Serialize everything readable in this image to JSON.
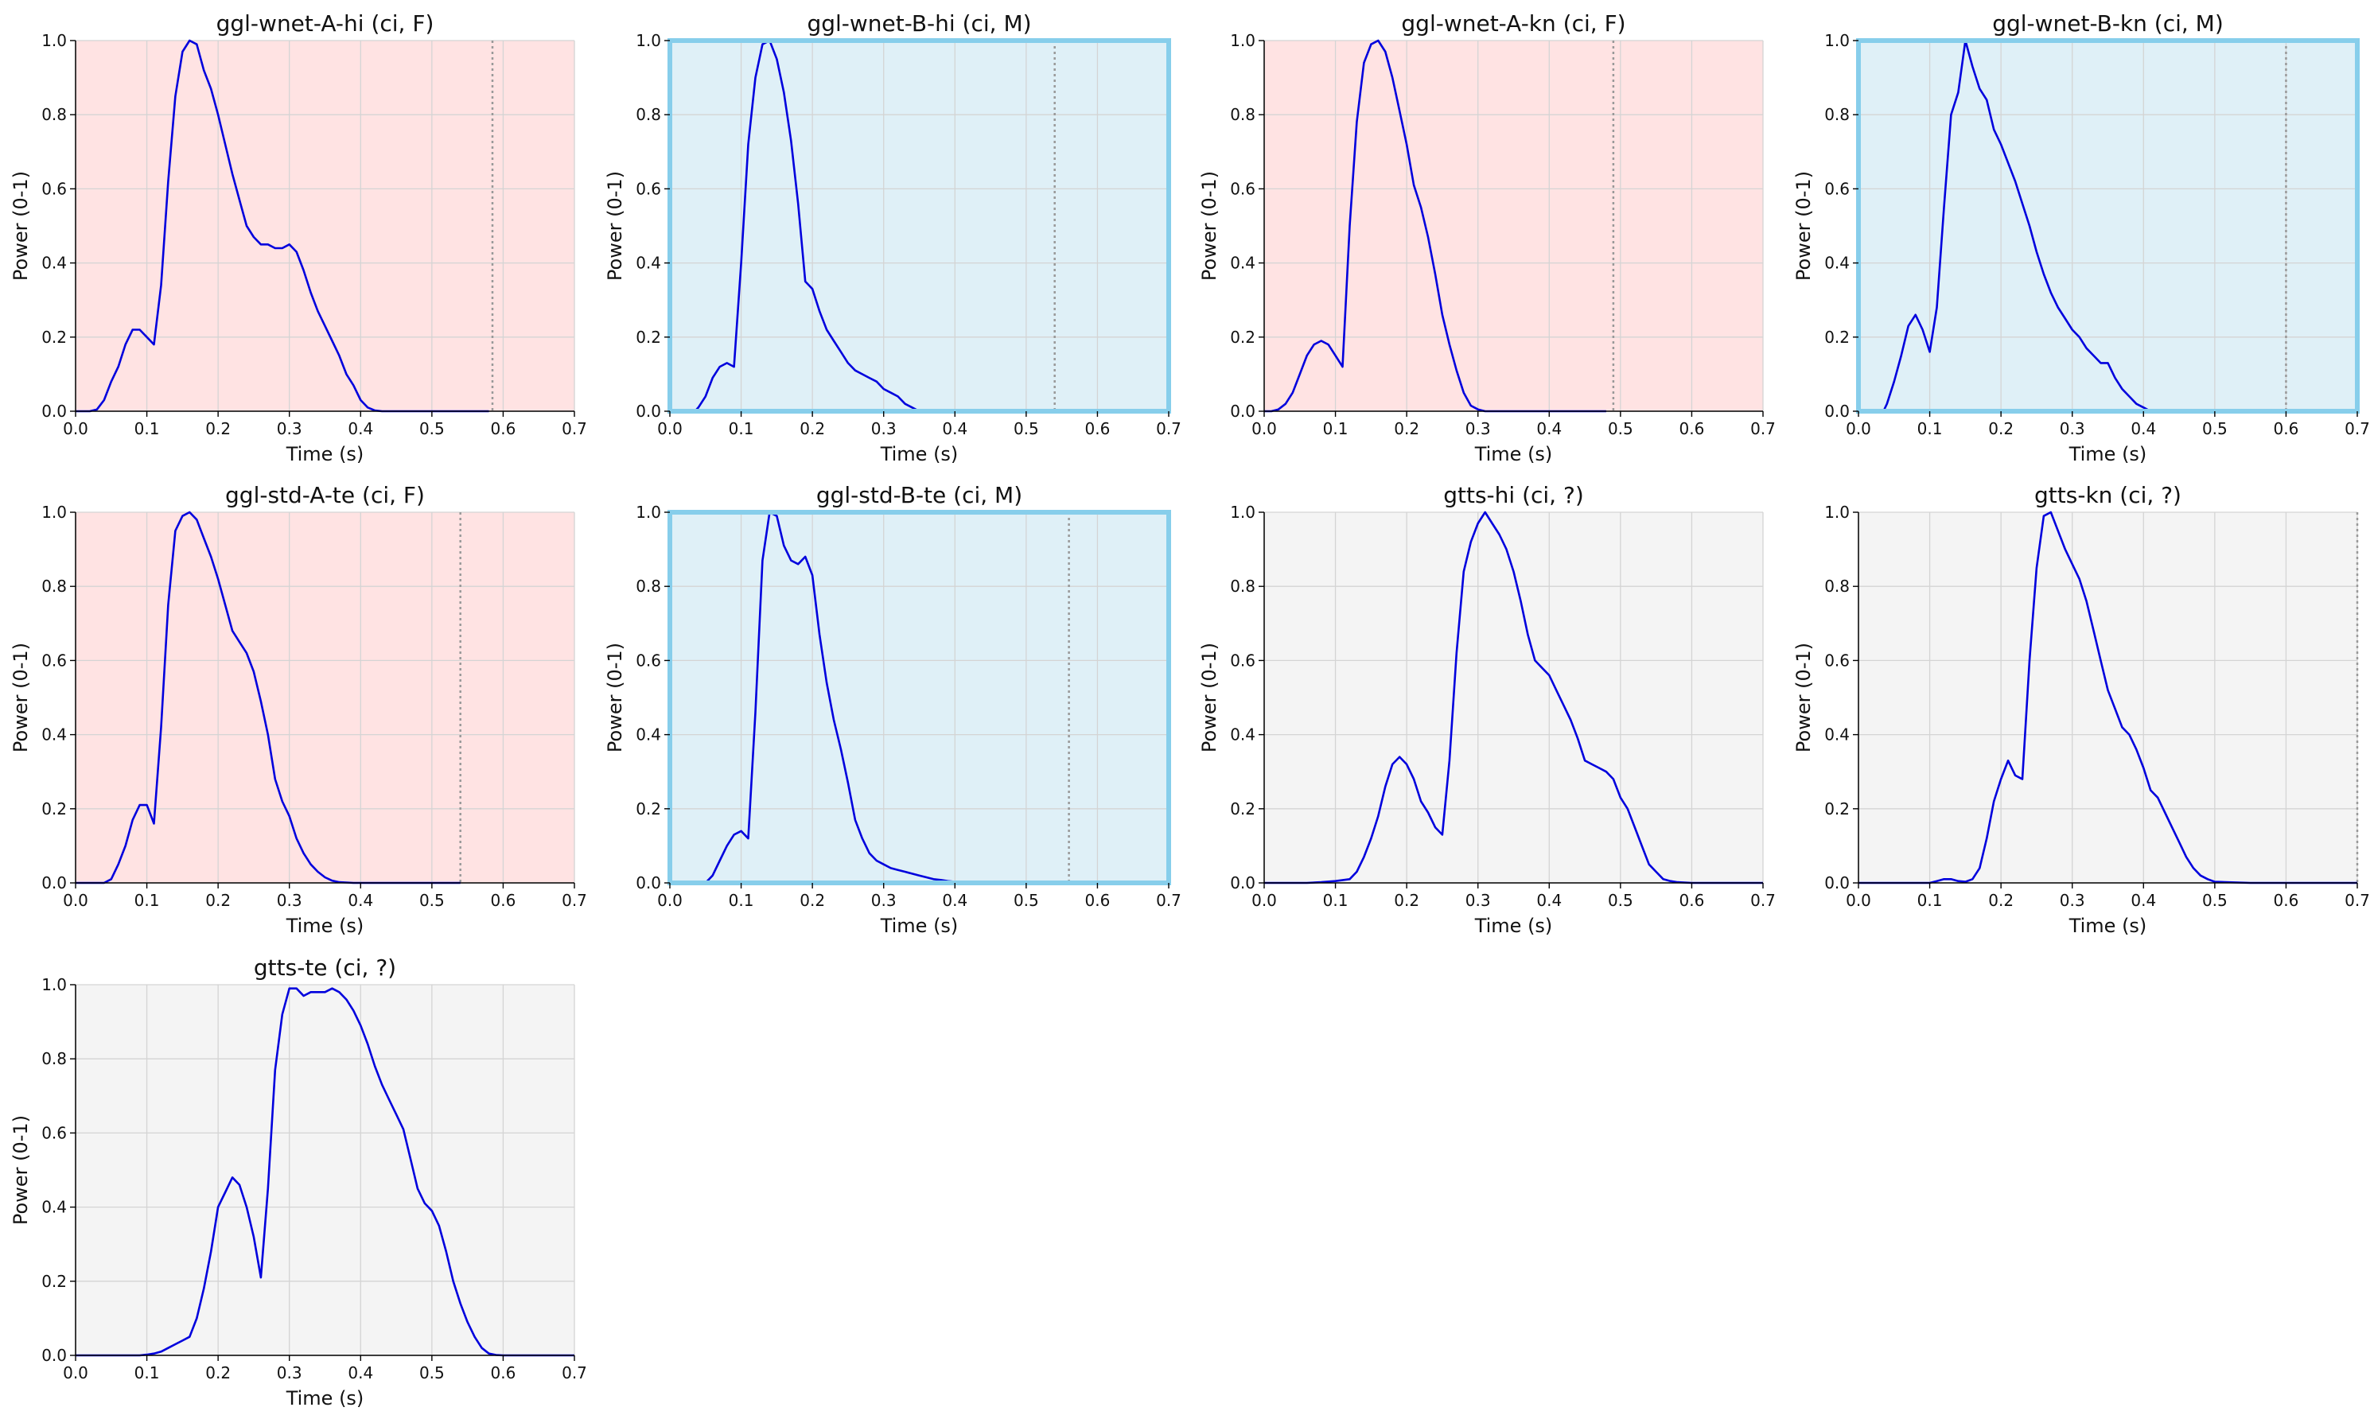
{
  "colors": {
    "female_bg": "#ffe3e3",
    "male_bg": "#dff0f7",
    "unknown_bg": "#f4f4f4",
    "male_frame": "#87ceeb",
    "line": "#0000dd",
    "marker": "#999999"
  },
  "chart_data": [
    {
      "type": "line",
      "title": "ggl-wnet-A-hi (ci, F)",
      "xlabel": "Time (s)",
      "ylabel": "Power (0-1)",
      "xlim": [
        0,
        0.7
      ],
      "ylim": [
        0,
        1
      ],
      "xticks": [
        "0.0",
        "0.1",
        "0.2",
        "0.3",
        "0.4",
        "0.5",
        "0.6",
        "0.7"
      ],
      "yticks": [
        "0.0",
        "0.2",
        "0.4",
        "0.6",
        "0.8",
        "1.0"
      ],
      "grid": true,
      "group": "F",
      "end_marker": 0.585,
      "x": [
        0,
        0.02,
        0.03,
        0.04,
        0.05,
        0.06,
        0.07,
        0.08,
        0.09,
        0.1,
        0.11,
        0.12,
        0.13,
        0.14,
        0.15,
        0.16,
        0.17,
        0.18,
        0.19,
        0.2,
        0.21,
        0.22,
        0.23,
        0.24,
        0.25,
        0.26,
        0.27,
        0.28,
        0.29,
        0.3,
        0.31,
        0.32,
        0.33,
        0.34,
        0.35,
        0.36,
        0.37,
        0.38,
        0.39,
        0.4,
        0.41,
        0.42,
        0.43,
        0.45,
        0.5,
        0.58
      ],
      "y": [
        0,
        0,
        0.005,
        0.03,
        0.08,
        0.12,
        0.18,
        0.22,
        0.22,
        0.2,
        0.18,
        0.34,
        0.62,
        0.85,
        0.97,
        1.0,
        0.99,
        0.92,
        0.87,
        0.8,
        0.72,
        0.64,
        0.57,
        0.5,
        0.47,
        0.45,
        0.45,
        0.44,
        0.44,
        0.45,
        0.43,
        0.38,
        0.32,
        0.27,
        0.23,
        0.19,
        0.15,
        0.1,
        0.07,
        0.03,
        0.01,
        0.002,
        0,
        0,
        0,
        0
      ]
    },
    {
      "type": "line",
      "title": "ggl-wnet-B-hi (ci, M)",
      "xlabel": "Time (s)",
      "ylabel": "Power (0-1)",
      "xlim": [
        0,
        0.7
      ],
      "ylim": [
        0,
        1
      ],
      "xticks": [
        "0.0",
        "0.1",
        "0.2",
        "0.3",
        "0.4",
        "0.5",
        "0.6",
        "0.7"
      ],
      "yticks": [
        "0.0",
        "0.2",
        "0.4",
        "0.6",
        "0.8",
        "1.0"
      ],
      "grid": true,
      "group": "M",
      "end_marker": 0.54,
      "x": [
        0.035,
        0.04,
        0.05,
        0.06,
        0.07,
        0.08,
        0.09,
        0.1,
        0.11,
        0.12,
        0.13,
        0.14,
        0.15,
        0.16,
        0.17,
        0.18,
        0.19,
        0.2,
        0.21,
        0.22,
        0.23,
        0.24,
        0.25,
        0.26,
        0.27,
        0.28,
        0.29,
        0.3,
        0.31,
        0.32,
        0.33,
        0.34,
        0.35,
        0.36,
        0.37,
        0.38
      ],
      "y": [
        0,
        0.01,
        0.04,
        0.09,
        0.12,
        0.13,
        0.12,
        0.4,
        0.72,
        0.9,
        0.99,
        1.0,
        0.95,
        0.86,
        0.73,
        0.56,
        0.35,
        0.33,
        0.27,
        0.22,
        0.19,
        0.16,
        0.13,
        0.11,
        0.1,
        0.09,
        0.08,
        0.06,
        0.05,
        0.04,
        0.02,
        0.01,
        0,
        0,
        0,
        0
      ]
    },
    {
      "type": "line",
      "title": "ggl-wnet-A-kn (ci, F)",
      "xlabel": "Time (s)",
      "ylabel": "Power (0-1)",
      "xlim": [
        0,
        0.7
      ],
      "ylim": [
        0,
        1
      ],
      "xticks": [
        "0.0",
        "0.1",
        "0.2",
        "0.3",
        "0.4",
        "0.5",
        "0.6",
        "0.7"
      ],
      "yticks": [
        "0.0",
        "0.2",
        "0.4",
        "0.6",
        "0.8",
        "1.0"
      ],
      "grid": true,
      "group": "F",
      "end_marker": 0.49,
      "x": [
        0,
        0.01,
        0.02,
        0.03,
        0.04,
        0.05,
        0.06,
        0.07,
        0.08,
        0.09,
        0.1,
        0.11,
        0.12,
        0.13,
        0.14,
        0.15,
        0.16,
        0.17,
        0.18,
        0.19,
        0.2,
        0.21,
        0.22,
        0.23,
        0.24,
        0.25,
        0.26,
        0.27,
        0.28,
        0.29,
        0.3,
        0.31,
        0.32,
        0.35,
        0.4,
        0.48
      ],
      "y": [
        0,
        0,
        0.005,
        0.02,
        0.05,
        0.1,
        0.15,
        0.18,
        0.19,
        0.18,
        0.15,
        0.12,
        0.5,
        0.78,
        0.94,
        0.99,
        1.0,
        0.97,
        0.9,
        0.81,
        0.72,
        0.61,
        0.55,
        0.47,
        0.37,
        0.26,
        0.18,
        0.11,
        0.05,
        0.015,
        0.005,
        0,
        0,
        0,
        0,
        0
      ]
    },
    {
      "type": "line",
      "title": "ggl-wnet-B-kn (ci, M)",
      "xlabel": "Time (s)",
      "ylabel": "Power (0-1)",
      "xlim": [
        0,
        0.7
      ],
      "ylim": [
        0,
        1
      ],
      "xticks": [
        "0.0",
        "0.1",
        "0.2",
        "0.3",
        "0.4",
        "0.5",
        "0.6",
        "0.7"
      ],
      "yticks": [
        "0.0",
        "0.2",
        "0.4",
        "0.6",
        "0.8",
        "1.0"
      ],
      "grid": true,
      "group": "M",
      "end_marker": 0.6,
      "x": [
        0.035,
        0.04,
        0.05,
        0.06,
        0.07,
        0.08,
        0.09,
        0.1,
        0.11,
        0.12,
        0.13,
        0.14,
        0.15,
        0.16,
        0.17,
        0.18,
        0.19,
        0.2,
        0.21,
        0.22,
        0.23,
        0.24,
        0.25,
        0.26,
        0.27,
        0.28,
        0.29,
        0.3,
        0.31,
        0.32,
        0.33,
        0.34,
        0.35,
        0.36,
        0.37,
        0.38,
        0.39,
        0.4,
        0.41
      ],
      "y": [
        0,
        0.02,
        0.08,
        0.15,
        0.23,
        0.26,
        0.22,
        0.16,
        0.28,
        0.55,
        0.8,
        0.86,
        1.0,
        0.93,
        0.87,
        0.84,
        0.76,
        0.72,
        0.67,
        0.62,
        0.56,
        0.5,
        0.43,
        0.37,
        0.32,
        0.28,
        0.25,
        0.22,
        0.2,
        0.17,
        0.15,
        0.13,
        0.13,
        0.09,
        0.06,
        0.04,
        0.02,
        0.01,
        0
      ]
    },
    {
      "type": "line",
      "title": "ggl-std-A-te (ci, F)",
      "xlabel": "Time (s)",
      "ylabel": "Power (0-1)",
      "xlim": [
        0,
        0.7
      ],
      "ylim": [
        0,
        1
      ],
      "xticks": [
        "0.0",
        "0.1",
        "0.2",
        "0.3",
        "0.4",
        "0.5",
        "0.6",
        "0.7"
      ],
      "yticks": [
        "0.0",
        "0.2",
        "0.4",
        "0.6",
        "0.8",
        "1.0"
      ],
      "grid": true,
      "group": "F",
      "end_marker": 0.54,
      "x": [
        0,
        0.04,
        0.05,
        0.06,
        0.07,
        0.08,
        0.09,
        0.1,
        0.11,
        0.12,
        0.13,
        0.14,
        0.15,
        0.16,
        0.17,
        0.18,
        0.19,
        0.2,
        0.21,
        0.22,
        0.23,
        0.24,
        0.25,
        0.26,
        0.27,
        0.28,
        0.29,
        0.3,
        0.31,
        0.32,
        0.33,
        0.34,
        0.35,
        0.36,
        0.37,
        0.38,
        0.39,
        0.4,
        0.41,
        0.45,
        0.5,
        0.54
      ],
      "y": [
        0,
        0,
        0.01,
        0.05,
        0.1,
        0.17,
        0.21,
        0.21,
        0.16,
        0.42,
        0.75,
        0.95,
        0.99,
        1.0,
        0.98,
        0.93,
        0.88,
        0.82,
        0.75,
        0.68,
        0.65,
        0.62,
        0.57,
        0.49,
        0.4,
        0.28,
        0.22,
        0.18,
        0.12,
        0.08,
        0.05,
        0.03,
        0.015,
        0.006,
        0.002,
        0.001,
        0,
        0,
        0,
        0,
        0,
        0
      ]
    },
    {
      "type": "line",
      "title": "ggl-std-B-te (ci, M)",
      "xlabel": "Time (s)",
      "ylabel": "Power (0-1)",
      "xlim": [
        0,
        0.7
      ],
      "ylim": [
        0,
        1
      ],
      "xticks": [
        "0.0",
        "0.1",
        "0.2",
        "0.3",
        "0.4",
        "0.5",
        "0.6",
        "0.7"
      ],
      "yticks": [
        "0.0",
        "0.2",
        "0.4",
        "0.6",
        "0.8",
        "1.0"
      ],
      "grid": true,
      "group": "M",
      "end_marker": 0.56,
      "x": [
        0.05,
        0.06,
        0.07,
        0.08,
        0.09,
        0.1,
        0.11,
        0.12,
        0.13,
        0.14,
        0.15,
        0.16,
        0.17,
        0.18,
        0.19,
        0.2,
        0.21,
        0.22,
        0.23,
        0.24,
        0.25,
        0.26,
        0.27,
        0.28,
        0.29,
        0.3,
        0.31,
        0.32,
        0.33,
        0.34,
        0.35,
        0.36,
        0.37,
        0.38,
        0.39,
        0.4,
        0.41,
        0.42,
        0.45,
        0.5,
        0.55
      ],
      "y": [
        0,
        0.02,
        0.06,
        0.1,
        0.13,
        0.14,
        0.12,
        0.46,
        0.87,
        1.0,
        0.99,
        0.91,
        0.87,
        0.86,
        0.88,
        0.83,
        0.67,
        0.54,
        0.44,
        0.36,
        0.27,
        0.17,
        0.12,
        0.08,
        0.06,
        0.05,
        0.04,
        0.035,
        0.03,
        0.025,
        0.02,
        0.015,
        0.01,
        0.008,
        0.005,
        0.003,
        0.002,
        0.001,
        0,
        0,
        0
      ]
    },
    {
      "type": "line",
      "title": "gtts-hi (ci, ?)",
      "xlabel": "Time (s)",
      "ylabel": "Power (0-1)",
      "xlim": [
        0,
        0.7
      ],
      "ylim": [
        0,
        1
      ],
      "xticks": [
        "0.0",
        "0.1",
        "0.2",
        "0.3",
        "0.4",
        "0.5",
        "0.6",
        "0.7"
      ],
      "yticks": [
        "0.0",
        "0.2",
        "0.4",
        "0.6",
        "0.8",
        "1.0"
      ],
      "grid": true,
      "group": "?",
      "end_marker": null,
      "x": [
        0,
        0.06,
        0.08,
        0.1,
        0.12,
        0.13,
        0.14,
        0.15,
        0.16,
        0.17,
        0.18,
        0.19,
        0.2,
        0.21,
        0.22,
        0.23,
        0.24,
        0.25,
        0.26,
        0.27,
        0.28,
        0.29,
        0.3,
        0.31,
        0.32,
        0.33,
        0.34,
        0.35,
        0.36,
        0.37,
        0.38,
        0.39,
        0.4,
        0.41,
        0.42,
        0.43,
        0.44,
        0.45,
        0.46,
        0.47,
        0.48,
        0.49,
        0.5,
        0.51,
        0.52,
        0.53,
        0.54,
        0.55,
        0.56,
        0.57,
        0.58,
        0.6,
        0.65,
        0.7
      ],
      "y": [
        0,
        0,
        0.002,
        0.005,
        0.01,
        0.03,
        0.07,
        0.12,
        0.18,
        0.26,
        0.32,
        0.34,
        0.32,
        0.28,
        0.22,
        0.19,
        0.15,
        0.13,
        0.33,
        0.62,
        0.84,
        0.92,
        0.97,
        1.0,
        0.97,
        0.94,
        0.9,
        0.84,
        0.76,
        0.67,
        0.6,
        0.58,
        0.56,
        0.52,
        0.48,
        0.44,
        0.39,
        0.33,
        0.32,
        0.31,
        0.3,
        0.28,
        0.23,
        0.2,
        0.15,
        0.1,
        0.05,
        0.03,
        0.01,
        0.005,
        0.002,
        0,
        0,
        0
      ]
    },
    {
      "type": "line",
      "title": "gtts-kn (ci, ?)",
      "xlabel": "Time (s)",
      "ylabel": "Power (0-1)",
      "xlim": [
        0,
        0.7
      ],
      "ylim": [
        0,
        1
      ],
      "xticks": [
        "0.0",
        "0.1",
        "0.2",
        "0.3",
        "0.4",
        "0.5",
        "0.6",
        "0.7"
      ],
      "yticks": [
        "0.0",
        "0.2",
        "0.4",
        "0.6",
        "0.8",
        "1.0"
      ],
      "grid": true,
      "group": "?",
      "end_marker": 0.7,
      "x": [
        0,
        0.1,
        0.11,
        0.12,
        0.13,
        0.14,
        0.15,
        0.16,
        0.17,
        0.18,
        0.19,
        0.2,
        0.21,
        0.22,
        0.23,
        0.24,
        0.25,
        0.26,
        0.27,
        0.28,
        0.29,
        0.3,
        0.31,
        0.32,
        0.33,
        0.34,
        0.35,
        0.36,
        0.37,
        0.38,
        0.39,
        0.4,
        0.41,
        0.42,
        0.43,
        0.44,
        0.45,
        0.46,
        0.47,
        0.48,
        0.49,
        0.5,
        0.55,
        0.6,
        0.7
      ],
      "y": [
        0,
        0,
        0.005,
        0.01,
        0.01,
        0.005,
        0.003,
        0.01,
        0.04,
        0.12,
        0.22,
        0.28,
        0.33,
        0.29,
        0.28,
        0.6,
        0.85,
        0.99,
        1.0,
        0.95,
        0.9,
        0.86,
        0.82,
        0.76,
        0.68,
        0.6,
        0.52,
        0.47,
        0.42,
        0.4,
        0.36,
        0.31,
        0.25,
        0.23,
        0.19,
        0.15,
        0.11,
        0.07,
        0.04,
        0.02,
        0.01,
        0.003,
        0,
        0,
        0
      ]
    },
    {
      "type": "line",
      "title": "gtts-te (ci, ?)",
      "xlabel": "Time (s)",
      "ylabel": "Power (0-1)",
      "xlim": [
        0,
        0.7
      ],
      "ylim": [
        0,
        1
      ],
      "xticks": [
        "0.0",
        "0.1",
        "0.2",
        "0.3",
        "0.4",
        "0.5",
        "0.6",
        "0.7"
      ],
      "yticks": [
        "0.0",
        "0.2",
        "0.4",
        "0.6",
        "0.8",
        "1.0"
      ],
      "grid": true,
      "group": "?",
      "end_marker": null,
      "x": [
        0,
        0.09,
        0.1,
        0.11,
        0.12,
        0.13,
        0.14,
        0.15,
        0.16,
        0.17,
        0.18,
        0.19,
        0.2,
        0.21,
        0.22,
        0.23,
        0.24,
        0.25,
        0.26,
        0.27,
        0.28,
        0.29,
        0.3,
        0.31,
        0.32,
        0.33,
        0.34,
        0.35,
        0.36,
        0.37,
        0.38,
        0.39,
        0.4,
        0.41,
        0.42,
        0.43,
        0.44,
        0.45,
        0.46,
        0.47,
        0.48,
        0.49,
        0.5,
        0.51,
        0.52,
        0.53,
        0.54,
        0.55,
        0.56,
        0.57,
        0.58,
        0.59,
        0.6,
        0.65,
        0.7
      ],
      "y": [
        0,
        0,
        0.002,
        0.005,
        0.01,
        0.02,
        0.03,
        0.04,
        0.05,
        0.1,
        0.18,
        0.28,
        0.4,
        0.44,
        0.48,
        0.46,
        0.4,
        0.32,
        0.21,
        0.45,
        0.77,
        0.92,
        0.99,
        0.99,
        0.97,
        0.98,
        0.98,
        0.98,
        0.99,
        0.98,
        0.96,
        0.93,
        0.89,
        0.84,
        0.78,
        0.73,
        0.69,
        0.65,
        0.61,
        0.53,
        0.45,
        0.41,
        0.39,
        0.35,
        0.28,
        0.2,
        0.14,
        0.09,
        0.05,
        0.02,
        0.005,
        0.001,
        0,
        0,
        0
      ]
    }
  ]
}
